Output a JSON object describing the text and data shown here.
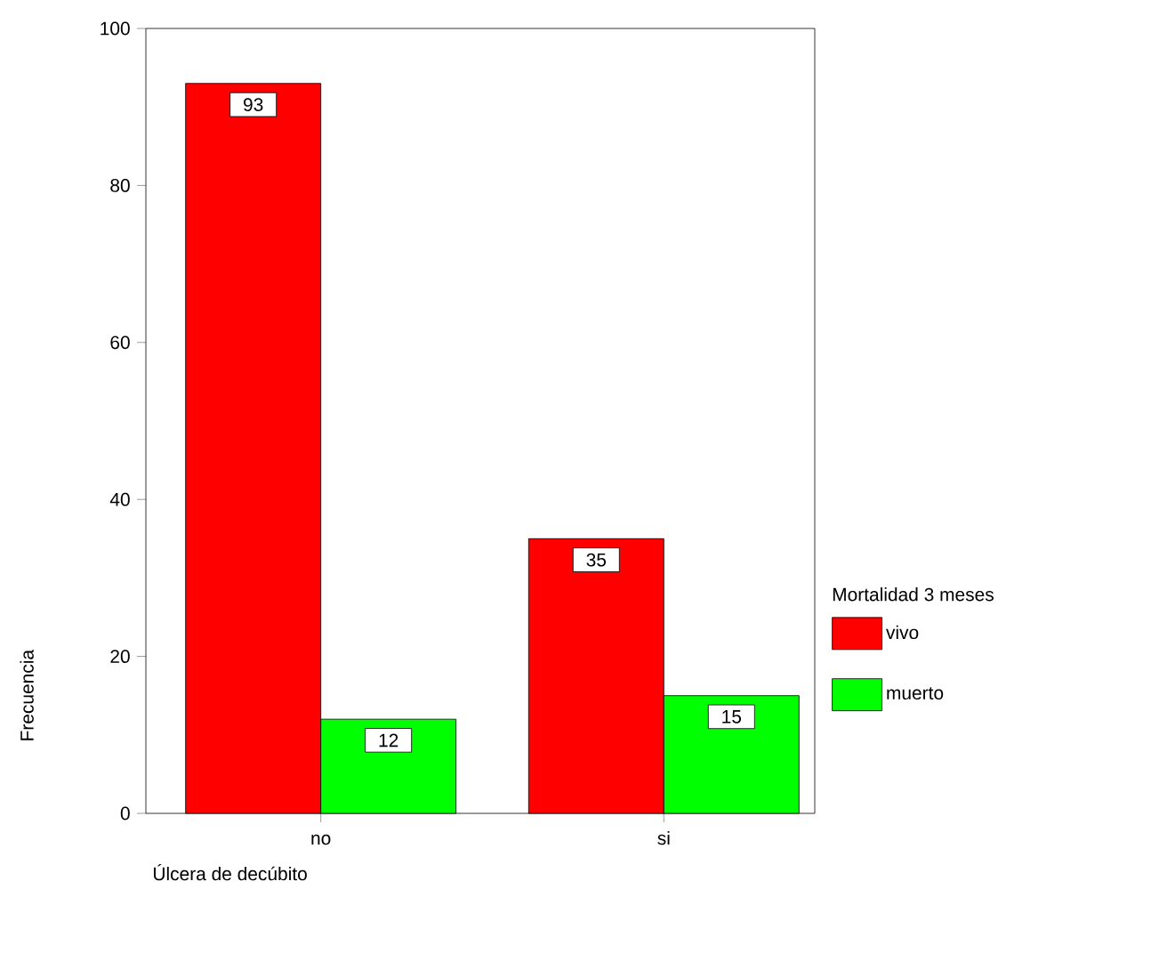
{
  "chart_data": {
    "type": "bar",
    "xlabel": "Úlcera de decúbito",
    "ylabel": "Frecuencia",
    "legend_title": "Mortalidad 3 meses",
    "categories": [
      "no",
      "si"
    ],
    "series": [
      {
        "name": "vivo",
        "color": "#ff0000",
        "values": [
          93,
          35
        ]
      },
      {
        "name": "muerto",
        "color": "#00ff00",
        "values": [
          12,
          15
        ]
      }
    ],
    "ylim": [
      0,
      100
    ],
    "yticks": [
      0,
      20,
      40,
      60,
      80,
      100
    ],
    "data_labels": true,
    "grid": false,
    "legend": "right"
  }
}
